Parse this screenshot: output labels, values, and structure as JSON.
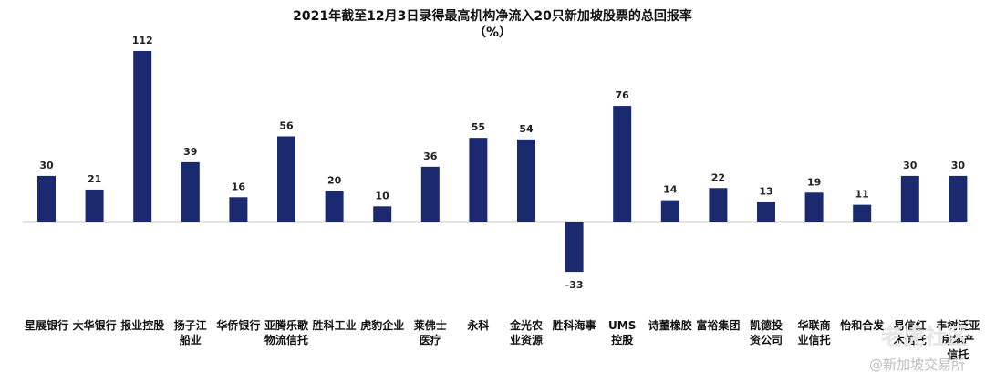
{
  "chart_data": {
    "type": "bar",
    "title": "2021年截至12月3日录得最高机构净流入20只新加坡股票的总回报率",
    "subtitle": "（%）",
    "categories": [
      "星展银行",
      "大华银行",
      "报业控股",
      "扬子江船业",
      "华侨银行",
      "亚腾乐歌物流信托",
      "胜科工业",
      "虎豹企业",
      "莱佛士医疗",
      "永科",
      "金光农业资源",
      "胜科海事",
      "UMS控股",
      "诗董橡胶",
      "富裕集团",
      "凯德投资公司",
      "华联商业信托",
      "怡和合发",
      "易信红木信托",
      "丰树泛亚房地产信托"
    ],
    "category_lines": [
      [
        "星展银行"
      ],
      [
        "大华银行"
      ],
      [
        "报业控股"
      ],
      [
        "扬子江",
        "船业"
      ],
      [
        "华侨银行"
      ],
      [
        "亚腾乐歌",
        "物流信托"
      ],
      [
        "胜科工业"
      ],
      [
        "虎豹企业"
      ],
      [
        "莱佛士",
        "医疗"
      ],
      [
        "永科"
      ],
      [
        "金光农",
        "业资源"
      ],
      [
        "胜科海事"
      ],
      [
        "UMS",
        "控股"
      ],
      [
        "诗董橡胶"
      ],
      [
        "富裕集团"
      ],
      [
        "凯德投",
        "资公司"
      ],
      [
        "华联商",
        "业信托"
      ],
      [
        "怡和合发"
      ],
      [
        "易信红",
        "木信托"
      ],
      [
        "丰树泛亚",
        "房地产",
        "信托"
      ]
    ],
    "values": [
      30,
      21,
      112,
      39,
      16,
      56,
      20,
      10,
      36,
      55,
      54,
      -33,
      76,
      14,
      22,
      13,
      19,
      11,
      30,
      30
    ],
    "ylim": [
      -33,
      112
    ],
    "grid": false,
    "color": "#1b2a6e"
  },
  "watermark": {
    "site": "@新加坡交易所",
    "brand": "老虎社区"
  }
}
